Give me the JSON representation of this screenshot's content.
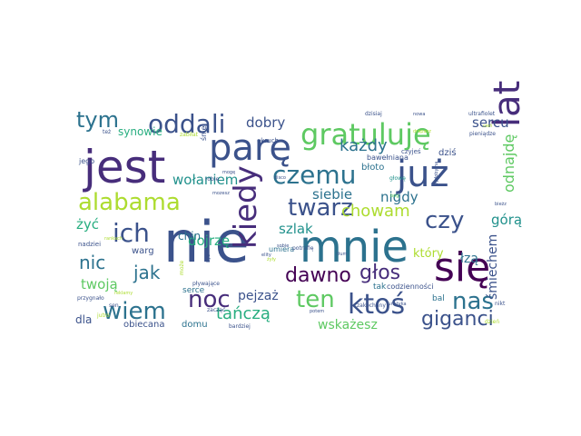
{
  "palette": {
    "dark_purple": "#440154",
    "purple": "#472d7b",
    "slate": "#3b528b",
    "blue": "#2c728e",
    "teal": "#21918c",
    "green_teal": "#28ae80",
    "green": "#5ec962",
    "lime": "#addc30",
    "yellow": "#fde725"
  },
  "words": [
    {
      "text": "nie",
      "color": "#3b528b"
    },
    {
      "text": "mnie",
      "color": "#2c728e"
    },
    {
      "text": "jest",
      "color": "#472d7b"
    },
    {
      "text": "się",
      "color": "#440154"
    },
    {
      "text": "parę",
      "color": "#3b528b"
    },
    {
      "text": "już",
      "color": "#3b528b"
    },
    {
      "text": "lat",
      "color": "#472d7b"
    },
    {
      "text": "kiedy",
      "color": "#472d7b"
    },
    {
      "text": "gratuluję",
      "color": "#5ec962"
    },
    {
      "text": "alabama",
      "color": "#addc30"
    },
    {
      "text": "oddali",
      "color": "#3b528b"
    },
    {
      "text": "czemu",
      "color": "#2c728e"
    },
    {
      "text": "twarz",
      "color": "#3b528b"
    },
    {
      "text": "ich",
      "color": "#3b528b"
    },
    {
      "text": "ktoś",
      "color": "#3b528b"
    },
    {
      "text": "ten",
      "color": "#5ec962"
    },
    {
      "text": "czy",
      "color": "#3b528b"
    },
    {
      "text": "nas",
      "color": "#2c728e"
    },
    {
      "text": "noc",
      "color": "#472d7b"
    },
    {
      "text": "wiem",
      "color": "#2c728e"
    },
    {
      "text": "tym",
      "color": "#2c728e"
    },
    {
      "text": "dawno",
      "color": "#440154"
    },
    {
      "text": "głos",
      "color": "#472d7b"
    },
    {
      "text": "giganci",
      "color": "#3b528b"
    },
    {
      "text": "chowam",
      "color": "#addc30"
    },
    {
      "text": "każdy",
      "color": "#2c728e"
    },
    {
      "text": "jak",
      "color": "#2c728e"
    },
    {
      "text": "nic",
      "color": "#2c728e"
    },
    {
      "text": "tańczą",
      "color": "#28ae80"
    },
    {
      "text": "dobry",
      "color": "#3b528b"
    },
    {
      "text": "wołaniem",
      "color": "#21918c"
    },
    {
      "text": "sercu",
      "color": "#3b528b"
    },
    {
      "text": "odnajdę",
      "color": "#5ec962"
    },
    {
      "text": "szlak",
      "color": "#21918c"
    },
    {
      "text": "siebie",
      "color": "#2c728e"
    },
    {
      "text": "dojrzę",
      "color": "#28ae80"
    },
    {
      "text": "nigdy",
      "color": "#2c728e"
    },
    {
      "text": "żyć",
      "color": "#28ae80"
    },
    {
      "text": "twoją",
      "color": "#5ec962"
    },
    {
      "text": "górą",
      "color": "#21918c"
    },
    {
      "text": "łzą",
      "color": "#2c728e"
    },
    {
      "text": "pejzaż",
      "color": "#3b528b"
    },
    {
      "text": "wskażesz",
      "color": "#5ec962"
    },
    {
      "text": "śmiechem",
      "color": "#3b528b"
    },
    {
      "text": "który",
      "color": "#addc30"
    },
    {
      "text": "dla",
      "color": "#3b528b"
    },
    {
      "text": "chin",
      "color": "#2c728e"
    },
    {
      "text": "synowie",
      "color": "#28ae80"
    },
    {
      "text": "obiecana",
      "color": "#3b528b"
    },
    {
      "text": "domu",
      "color": "#2c728e"
    },
    {
      "text": "warg",
      "color": "#3b528b"
    },
    {
      "text": "dziś",
      "color": "#3b528b"
    },
    {
      "text": "błoto",
      "color": "#2c728e"
    },
    {
      "text": "serce",
      "color": "#2c728e"
    },
    {
      "text": "tak",
      "color": "#2c728e"
    },
    {
      "text": "bal",
      "color": "#2c728e"
    },
    {
      "text": "codzienności",
      "color": "#3b528b"
    },
    {
      "text": "bawełniana",
      "color": "#3b528b"
    },
    {
      "text": "umiera",
      "color": "#2c728e"
    },
    {
      "text": "okruch",
      "color": "#3b528b"
    },
    {
      "text": "dzisiaj",
      "color": "#3b528b"
    },
    {
      "text": "czyjeś",
      "color": "#3b528b"
    },
    {
      "text": "jego",
      "color": "#3b528b"
    },
    {
      "text": "nadziei",
      "color": "#3b528b"
    },
    {
      "text": "zacząć",
      "color": "#3b528b"
    },
    {
      "text": "przygnało",
      "color": "#3b528b"
    },
    {
      "text": "zakochany",
      "color": "#3b528b"
    },
    {
      "text": "potrafię",
      "color": "#3b528b"
    },
    {
      "text": "pływające",
      "color": "#3b528b"
    },
    {
      "text": "ultrafiolet",
      "color": "#3b528b"
    },
    {
      "text": "pieniądze",
      "color": "#3b528b"
    },
    {
      "text": "głowę",
      "color": "#21918c"
    },
    {
      "text": "robię",
      "color": "#3b528b"
    },
    {
      "text": "może",
      "color": "#addc30"
    },
    {
      "text": "śnie",
      "color": "#3b528b"
    },
    {
      "text": "zabiłat",
      "color": "#addc30"
    },
    {
      "text": "też",
      "color": "#3b528b"
    },
    {
      "text": "rankach",
      "color": "#addc30"
    },
    {
      "text": "sen",
      "color": "#3b528b"
    },
    {
      "text": "jutro",
      "color": "#addc30"
    },
    {
      "text": "bardziej",
      "color": "#3b528b"
    },
    {
      "text": "dzień",
      "color": "#addc30"
    },
    {
      "text": "nikt",
      "color": "#3b528b"
    },
    {
      "text": "żyły",
      "color": "#addc30"
    },
    {
      "text": "bieżz",
      "color": "#3b528b"
    },
    {
      "text": "wydobyma",
      "color": "#3b528b"
    },
    {
      "text": "bóg",
      "color": "#5ec962"
    },
    {
      "text": "tłum",
      "color": "#3b528b"
    },
    {
      "text": "sobie",
      "color": "#3b528b"
    },
    {
      "text": "disco",
      "color": "#3b528b"
    },
    {
      "text": "potem",
      "color": "#3b528b"
    },
    {
      "text": "elity",
      "color": "#3b528b"
    },
    {
      "text": "reklamy",
      "color": "#addc30"
    },
    {
      "text": "łunatyka",
      "color": "#3b528b"
    },
    {
      "text": "mogę",
      "color": "#3b528b"
    },
    {
      "text": "mozesz",
      "color": "#3b528b"
    },
    {
      "text": "nowa",
      "color": "#3b528b"
    },
    {
      "text": "drapacz",
      "color": "#addc30"
    },
    {
      "text": "być",
      "color": "#3b528b"
    },
    {
      "text": "cień",
      "color": "#addc30"
    }
  ]
}
